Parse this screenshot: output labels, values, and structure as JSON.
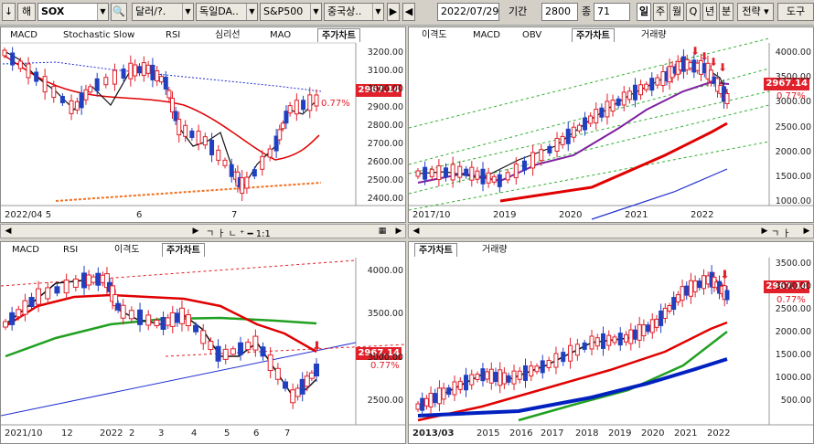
{
  "toolbar": {
    "down_arrow": "↓",
    "mode": "해",
    "symbol": "SOX",
    "currency": "달러/?.",
    "country": "독일DA..",
    "index": "S&P500",
    "china": "중국상..",
    "play": "▶",
    "back": "◀",
    "date": "2022/07/29",
    "period_label": "기간",
    "period_value": "2800",
    "count_label": "종",
    "count_value": "71",
    "tf_day": "일",
    "tf_week": "주",
    "tf_month": "월",
    "tf_quarter": "Q",
    "tf_year": "년",
    "tf_minute": "분",
    "strategy": "전략",
    "tools": "도구"
  },
  "panes": {
    "tl": {
      "tabs": [
        "MACD",
        "Stochastic Slow",
        "RSI",
        "심리선",
        "MAO",
        "주가차트"
      ],
      "active_tab": 5,
      "y_ticks": [
        "3200.00",
        "3100.00",
        "3000.00",
        "2900.00",
        "2800.00",
        "2700.00",
        "2600.00",
        "2500.00",
        "2400.00"
      ],
      "x_ticks": [
        "2022/04 5",
        "6",
        "7"
      ],
      "price_tag": "2967.14",
      "pct": "0.77%"
    },
    "tr": {
      "tabs": [
        "이격도",
        "MACD",
        "OBV",
        "주가차트",
        "거래량"
      ],
      "active_tab": 3,
      "y_ticks": [
        "4000.00",
        "3500.00",
        "3000.00",
        "2500.00",
        "2000.00",
        "1500.00",
        "1000.00"
      ],
      "x_ticks": [
        "2017/10",
        "2019",
        "2020",
        "2021",
        "2022"
      ],
      "price_tag": "2967.14",
      "pct": "0.77%"
    },
    "bl": {
      "tabs": [
        "MACD",
        "RSI",
        "이격도",
        "주가차트"
      ],
      "active_tab": 3,
      "y_ticks": [
        "4000.00",
        "3500.00",
        "3000.00",
        "2500.00"
      ],
      "x_ticks": [
        "2021/10",
        "12",
        "2022",
        "2",
        "3",
        "4",
        "5",
        "6",
        "7"
      ],
      "price_tag": "2967.14",
      "pct": "0.77%"
    },
    "br": {
      "tabs": [
        "주가차트",
        "거래량"
      ],
      "active_tab": 0,
      "y_ticks": [
        "3500.00",
        "3000.00",
        "2500.00",
        "2000.00",
        "1500.00",
        "1000.00",
        "500.00"
      ],
      "x_ticks": [
        "2013/03",
        "2015",
        "2016",
        "2017",
        "2018",
        "2019",
        "2020",
        "2021",
        "2022"
      ],
      "price_tag": "2967.14",
      "pct": "0.77%"
    }
  },
  "scroll": {
    "label_tools": "ㄱ ㅏ ㄴ ⁺ ━ 1:1"
  },
  "colors": {
    "up": "#e0202a",
    "down": "#2040c0",
    "ma_red": "#e00000",
    "ma_green": "#20a020",
    "ma_purple": "#8020a0",
    "ma_black": "#000000",
    "ma_blue": "#2030d0",
    "trend_green": "#30b030",
    "trend_orange": "#f07020"
  }
}
